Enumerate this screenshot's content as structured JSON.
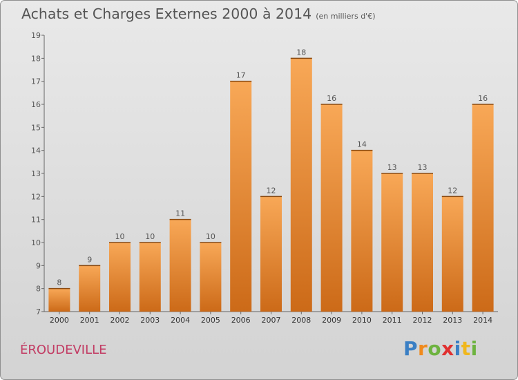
{
  "header": {
    "title": "Achats et Charges Externes 2000 à 2014",
    "subtitle": "(en milliers d'€)"
  },
  "commune": "ÉROUDEVILLE",
  "logo": {
    "letters": [
      "P",
      "r",
      "o",
      "x",
      "i",
      "t",
      "i"
    ],
    "colors": [
      "#3a7fc4",
      "#f08a1d",
      "#6db33f",
      "#e03030",
      "#3a7fc4",
      "#f0b71d",
      "#6db33f"
    ]
  },
  "colors": {
    "bar_light": "#f8a857",
    "bar_dark": "#cc6a18",
    "axis": "#666666",
    "text": "#555555"
  },
  "chart_data": {
    "type": "bar",
    "categories": [
      "2000",
      "2001",
      "2002",
      "2003",
      "2004",
      "2005",
      "2006",
      "2007",
      "2008",
      "2009",
      "2010",
      "2011",
      "2012",
      "2013",
      "2014"
    ],
    "values": [
      8,
      9,
      10,
      10,
      11,
      10,
      17,
      12,
      18,
      16,
      14,
      13,
      13,
      12,
      16
    ],
    "ylim": [
      7,
      19
    ],
    "yticks": [
      7,
      8,
      9,
      10,
      11,
      12,
      13,
      14,
      15,
      16,
      17,
      18,
      19
    ],
    "xlabel": "",
    "ylabel": "",
    "grid": false
  }
}
